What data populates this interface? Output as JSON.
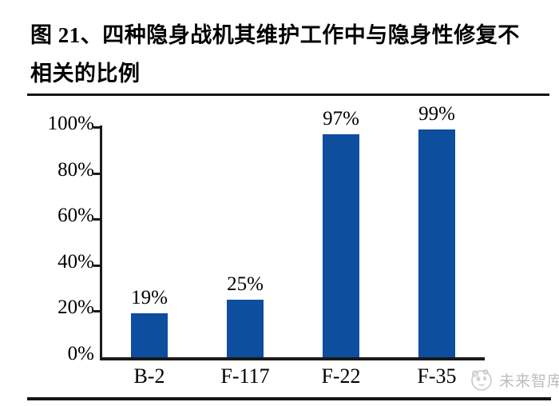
{
  "header": {
    "line1": "图 21、四种隐身战机其维护工作中与隐身性修复不",
    "line2": "相关的比例"
  },
  "chart_data": {
    "type": "bar",
    "title": "四种隐身战机其维护工作中与隐身性修复不相关的比例",
    "categories": [
      "B-2",
      "F-117",
      "F-22",
      "F-35"
    ],
    "values": [
      19,
      25,
      97,
      99
    ],
    "value_labels": [
      "19%",
      "25%",
      "97%",
      "99%"
    ],
    "xlabel": "",
    "ylabel": "",
    "ylim": [
      0,
      100
    ],
    "ytick_step": 20,
    "yticks": [
      "0%",
      "20%",
      "40%",
      "60%",
      "80%",
      "100%"
    ],
    "grid": false,
    "legend": "none",
    "bar_color": "#0d4e9e",
    "axis_color": "#1a1a1a"
  },
  "watermark": {
    "icon": "panda-logo-icon",
    "text": "未来智库",
    "color": "#bcbcbc"
  }
}
